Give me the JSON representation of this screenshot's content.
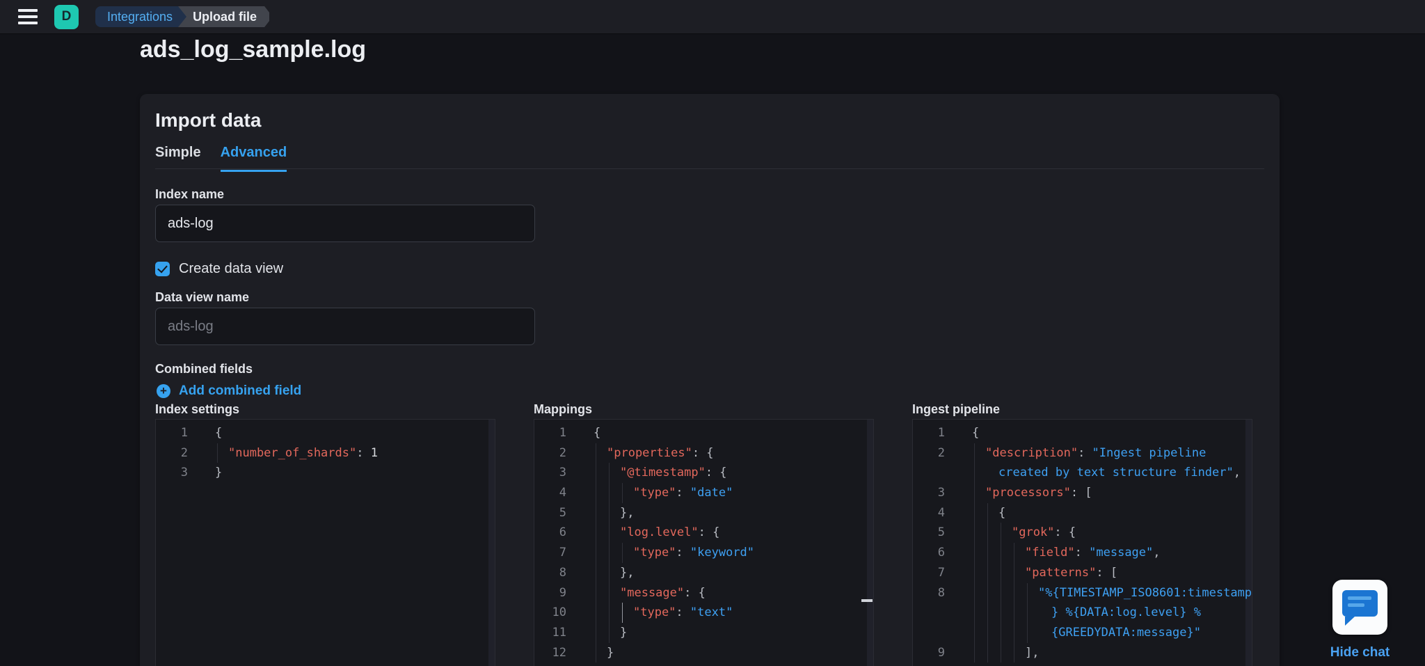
{
  "colors": {
    "accent_blue": "#36a2ef",
    "logo_teal": "#1ec8b1",
    "code_key_red": "#e3685c",
    "code_string_blue": "#3ea0f2",
    "chat_bubble_blue": "#1b75d2"
  },
  "header": {
    "menu_icon": "hamburger-icon",
    "logo_letter": "D",
    "breadcrumbs": [
      {
        "label": "Integrations"
      },
      {
        "label": "Upload file"
      }
    ]
  },
  "page": {
    "title": "ads_log_sample.log"
  },
  "import": {
    "heading": "Import data",
    "tabs": [
      {
        "label": "Simple",
        "active": false
      },
      {
        "label": "Advanced",
        "active": true
      }
    ],
    "index_name": {
      "label": "Index name",
      "value": "ads-log"
    },
    "create_data_view": {
      "label": "Create data view",
      "checked": true
    },
    "data_view_name": {
      "label": "Data view name",
      "placeholder": "ads-log"
    },
    "combined_fields": {
      "heading": "Combined fields",
      "add_label": "Add combined field"
    },
    "editors": [
      {
        "label": "Index settings",
        "lines": [
          {
            "n": "1",
            "i": 0,
            "g": 0,
            "parts": [
              [
                "p",
                "{"
              ]
            ]
          },
          {
            "n": "2",
            "i": 1,
            "g": 1,
            "parts": [
              [
                "k",
                "\"number_of_shards\""
              ],
              [
                "p",
                ": "
              ],
              [
                "n",
                "1"
              ]
            ]
          },
          {
            "n": "3",
            "i": 0,
            "g": 0,
            "parts": [
              [
                "p",
                "}"
              ]
            ]
          }
        ]
      },
      {
        "label": "Mappings",
        "lines": [
          {
            "n": "1",
            "i": 0,
            "g": 0,
            "parts": [
              [
                "p",
                "{"
              ]
            ]
          },
          {
            "n": "2",
            "i": 1,
            "g": 1,
            "parts": [
              [
                "k",
                "\"properties\""
              ],
              [
                "p",
                ": {"
              ]
            ]
          },
          {
            "n": "3",
            "i": 2,
            "g": 2,
            "parts": [
              [
                "k",
                "\"@timestamp\""
              ],
              [
                "p",
                ": {"
              ]
            ]
          },
          {
            "n": "4",
            "i": 3,
            "g": 3,
            "parts": [
              [
                "k",
                "\"type\""
              ],
              [
                "p",
                ": "
              ],
              [
                "s",
                "\"date\""
              ]
            ]
          },
          {
            "n": "5",
            "i": 2,
            "g": 2,
            "parts": [
              [
                "p",
                "},"
              ]
            ]
          },
          {
            "n": "6",
            "i": 2,
            "g": 2,
            "parts": [
              [
                "k",
                "\"log.level\""
              ],
              [
                "p",
                ": {"
              ]
            ]
          },
          {
            "n": "7",
            "i": 3,
            "g": 3,
            "parts": [
              [
                "k",
                "\"type\""
              ],
              [
                "p",
                ": "
              ],
              [
                "s",
                "\"keyword\""
              ]
            ]
          },
          {
            "n": "8",
            "i": 2,
            "g": 2,
            "parts": [
              [
                "p",
                "},"
              ]
            ]
          },
          {
            "n": "9",
            "i": 2,
            "g": 2,
            "parts": [
              [
                "k",
                "\"message\""
              ],
              [
                "p",
                ": {"
              ]
            ]
          },
          {
            "n": "10",
            "i": 3,
            "g": 3,
            "ag": 2,
            "parts": [
              [
                "k",
                "\"type\""
              ],
              [
                "p",
                ": "
              ],
              [
                "s",
                "\"text\""
              ]
            ]
          },
          {
            "n": "11",
            "i": 2,
            "g": 2,
            "parts": [
              [
                "p",
                "}"
              ]
            ]
          },
          {
            "n": "12",
            "i": 1,
            "g": 1,
            "parts": [
              [
                "p",
                "}"
              ]
            ]
          }
        ]
      },
      {
        "label": "Ingest pipeline",
        "lines": [
          {
            "n": "1",
            "i": 0,
            "g": 0,
            "parts": [
              [
                "p",
                "{"
              ]
            ]
          },
          {
            "n": "2",
            "i": 1,
            "g": 1,
            "parts": [
              [
                "k",
                "\"description\""
              ],
              [
                "p",
                ": "
              ],
              [
                "s",
                "\"Ingest pipeline"
              ]
            ]
          },
          {
            "n": "",
            "i": 2,
            "g": 1,
            "parts": [
              [
                "s",
                "created by text structure finder\""
              ],
              [
                "p",
                ","
              ]
            ]
          },
          {
            "n": "3",
            "i": 1,
            "g": 1,
            "parts": [
              [
                "k",
                "\"processors\""
              ],
              [
                "p",
                ": ["
              ]
            ]
          },
          {
            "n": "4",
            "i": 2,
            "g": 2,
            "parts": [
              [
                "p",
                "{"
              ]
            ]
          },
          {
            "n": "5",
            "i": 3,
            "g": 3,
            "parts": [
              [
                "k",
                "\"grok\""
              ],
              [
                "p",
                ": {"
              ]
            ]
          },
          {
            "n": "6",
            "i": 4,
            "g": 4,
            "parts": [
              [
                "k",
                "\"field\""
              ],
              [
                "p",
                ": "
              ],
              [
                "s",
                "\"message\""
              ],
              [
                "p",
                ","
              ]
            ]
          },
          {
            "n": "7",
            "i": 4,
            "g": 4,
            "parts": [
              [
                "k",
                "\"patterns\""
              ],
              [
                "p",
                ": ["
              ]
            ]
          },
          {
            "n": "8",
            "i": 5,
            "g": 5,
            "parts": [
              [
                "s",
                "\"%{TIMESTAMP_ISO8601:timestamp"
              ]
            ]
          },
          {
            "n": "",
            "i": 6,
            "g": 5,
            "parts": [
              [
                "s",
                "} %{DATA:log.level} %"
              ]
            ]
          },
          {
            "n": "",
            "i": 6,
            "g": 5,
            "parts": [
              [
                "s",
                "{GREEDYDATA:message}\""
              ]
            ]
          },
          {
            "n": "9",
            "i": 4,
            "g": 4,
            "parts": [
              [
                "p",
                "],"
              ]
            ]
          }
        ]
      }
    ]
  },
  "chat": {
    "icon": "chat-bubble-icon",
    "hide_label": "Hide chat"
  }
}
